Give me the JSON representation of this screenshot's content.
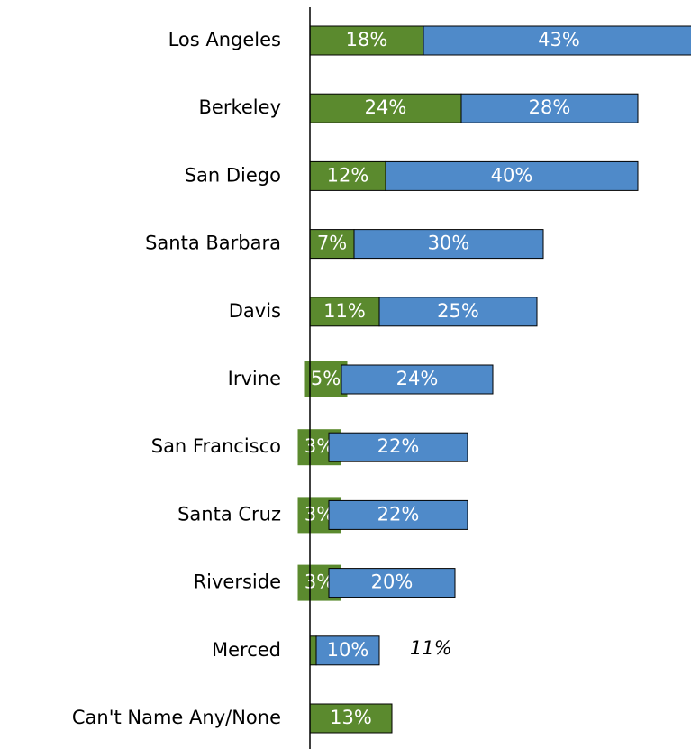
{
  "chart_data": {
    "type": "stacked-bar-horizontal",
    "categories": [
      "Los Angeles",
      "Berkeley",
      "San Diego",
      "Santa Barbara",
      "Davis",
      "Irvine",
      "San Francisco",
      "Santa Cruz",
      "Riverside",
      "Merced",
      "Can't Name Any/None"
    ],
    "series": [
      {
        "color": "#5b8a2e",
        "values": [
          18,
          24,
          12,
          7,
          11,
          5,
          3,
          3,
          3,
          1,
          13
        ],
        "value_labels": [
          "18%",
          "24%",
          "12%",
          "7%",
          "11%",
          "5%",
          "3%",
          "3%",
          "3%",
          null,
          "13%"
        ]
      },
      {
        "color": "#4f8ac9",
        "values": [
          43,
          28,
          40,
          30,
          25,
          24,
          22,
          22,
          20,
          10,
          null
        ],
        "value_labels": [
          "43%",
          "28%",
          "40%",
          "30%",
          "25%",
          "24%",
          "22%",
          "22%",
          "20%",
          "10%",
          null
        ]
      }
    ],
    "annotation": "11%"
  }
}
